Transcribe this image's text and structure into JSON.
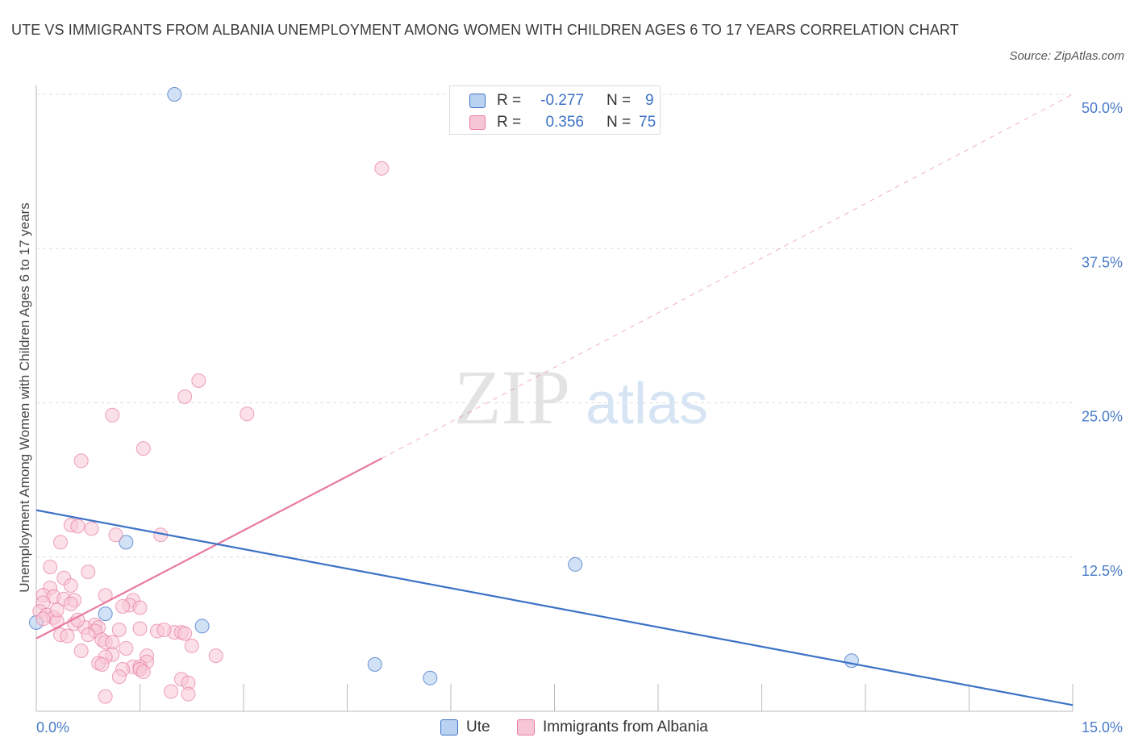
{
  "title": "UTE VS IMMIGRANTS FROM ALBANIA UNEMPLOYMENT AMONG WOMEN WITH CHILDREN AGES 6 TO 17 YEARS CORRELATION CHART",
  "source": "Source: ZipAtlas.com",
  "watermark": {
    "zip": "ZIP",
    "atlas": "atlas"
  },
  "colors": {
    "ute": "#3c72c6",
    "ute_fill": "#b9d2f2",
    "albania": "#e87aa0",
    "albania_fill": "#f7c6d6",
    "tick_text": "#4a7cc9",
    "grid": "#dddddd"
  },
  "legend": {
    "ute": {
      "r_label": "R =",
      "r_value": "-0.277",
      "n_label": "N =",
      "n_value": "9"
    },
    "albania": {
      "r_label": "R =",
      "r_value": "0.356",
      "n_label": "N =",
      "n_value": "75"
    }
  },
  "bottom_legend": {
    "ute": "Ute",
    "albania": "Immigrants from Albania"
  },
  "chart_data": {
    "type": "scatter",
    "title": "UTE VS IMMIGRANTS FROM ALBANIA UNEMPLOYMENT AMONG WOMEN WITH CHILDREN AGES 6 TO 17 YEARS CORRELATION CHART",
    "xlabel": "",
    "ylabel": "Unemployment Among Women with Children Ages 6 to 17 years",
    "xlim": [
      0,
      15
    ],
    "ylim": [
      0,
      50
    ],
    "x_tick_labels": [
      "0.0%",
      "15.0%"
    ],
    "y_ticks": [
      12.5,
      25.0,
      37.5,
      50.0
    ],
    "y_tick_labels": [
      "12.5%",
      "25.0%",
      "37.5%",
      "50.0%"
    ],
    "grid": true,
    "legend_position": "top-center",
    "series": [
      {
        "name": "Ute",
        "color": "#3c72c6",
        "points": [
          [
            2.0,
            50.0
          ],
          [
            1.3,
            13.7
          ],
          [
            1.0,
            7.9
          ],
          [
            2.4,
            6.9
          ],
          [
            0.0,
            7.2
          ],
          [
            7.8,
            11.9
          ],
          [
            4.9,
            3.8
          ],
          [
            5.7,
            2.7
          ],
          [
            11.8,
            4.1
          ]
        ],
        "trend": {
          "x": [
            0,
            15
          ],
          "y": [
            16.3,
            0.5
          ],
          "style": "solid"
        }
      },
      {
        "name": "Immigrants from Albania",
        "color": "#e87aa0",
        "points": [
          [
            5.0,
            44.0
          ],
          [
            2.35,
            26.8
          ],
          [
            2.15,
            25.5
          ],
          [
            3.05,
            24.1
          ],
          [
            1.1,
            24.0
          ],
          [
            1.55,
            21.3
          ],
          [
            0.65,
            20.3
          ],
          [
            0.5,
            15.1
          ],
          [
            0.6,
            15.0
          ],
          [
            0.8,
            14.8
          ],
          [
            1.15,
            14.3
          ],
          [
            1.8,
            14.3
          ],
          [
            0.35,
            13.7
          ],
          [
            0.2,
            11.7
          ],
          [
            0.75,
            11.3
          ],
          [
            0.4,
            10.8
          ],
          [
            0.5,
            10.2
          ],
          [
            0.2,
            10.0
          ],
          [
            0.1,
            9.4
          ],
          [
            0.25,
            9.3
          ],
          [
            0.4,
            9.1
          ],
          [
            0.55,
            9.0
          ],
          [
            0.1,
            8.8
          ],
          [
            0.5,
            8.7
          ],
          [
            1.0,
            9.4
          ],
          [
            1.4,
            9.0
          ],
          [
            1.35,
            8.6
          ],
          [
            1.5,
            8.4
          ],
          [
            1.25,
            8.5
          ],
          [
            0.05,
            8.1
          ],
          [
            0.15,
            7.8
          ],
          [
            0.25,
            7.6
          ],
          [
            0.1,
            7.5
          ],
          [
            0.3,
            7.3
          ],
          [
            0.55,
            7.1
          ],
          [
            0.85,
            7.0
          ],
          [
            0.9,
            6.8
          ],
          [
            0.7,
            6.8
          ],
          [
            0.85,
            6.5
          ],
          [
            1.2,
            6.6
          ],
          [
            1.5,
            6.7
          ],
          [
            1.75,
            6.5
          ],
          [
            2.0,
            6.4
          ],
          [
            2.1,
            6.4
          ],
          [
            2.15,
            6.3
          ],
          [
            0.35,
            6.2
          ],
          [
            0.45,
            6.1
          ],
          [
            0.75,
            6.2
          ],
          [
            0.95,
            5.8
          ],
          [
            1.0,
            5.6
          ],
          [
            1.1,
            5.6
          ],
          [
            1.3,
            5.1
          ],
          [
            2.25,
            5.3
          ],
          [
            0.65,
            4.9
          ],
          [
            1.1,
            4.6
          ],
          [
            1.0,
            4.4
          ],
          [
            1.6,
            4.5
          ],
          [
            2.6,
            4.5
          ],
          [
            0.9,
            3.9
          ],
          [
            0.95,
            3.8
          ],
          [
            1.6,
            4.0
          ],
          [
            1.4,
            3.6
          ],
          [
            1.5,
            3.6
          ],
          [
            1.25,
            3.4
          ],
          [
            1.5,
            3.4
          ],
          [
            1.55,
            3.2
          ],
          [
            1.2,
            2.8
          ],
          [
            2.1,
            2.6
          ],
          [
            2.2,
            2.3
          ],
          [
            1.95,
            1.6
          ],
          [
            2.2,
            1.4
          ],
          [
            1.0,
            1.2
          ],
          [
            0.3,
            8.2
          ],
          [
            1.85,
            6.6
          ],
          [
            0.6,
            7.4
          ]
        ],
        "trend": {
          "x": [
            0,
            5.0
          ],
          "y": [
            5.9,
            20.5
          ],
          "style": "solid"
        },
        "trend_extension": {
          "x": [
            5.0,
            15
          ],
          "y": [
            20.5,
            50.0
          ],
          "style": "dashed"
        }
      }
    ]
  }
}
